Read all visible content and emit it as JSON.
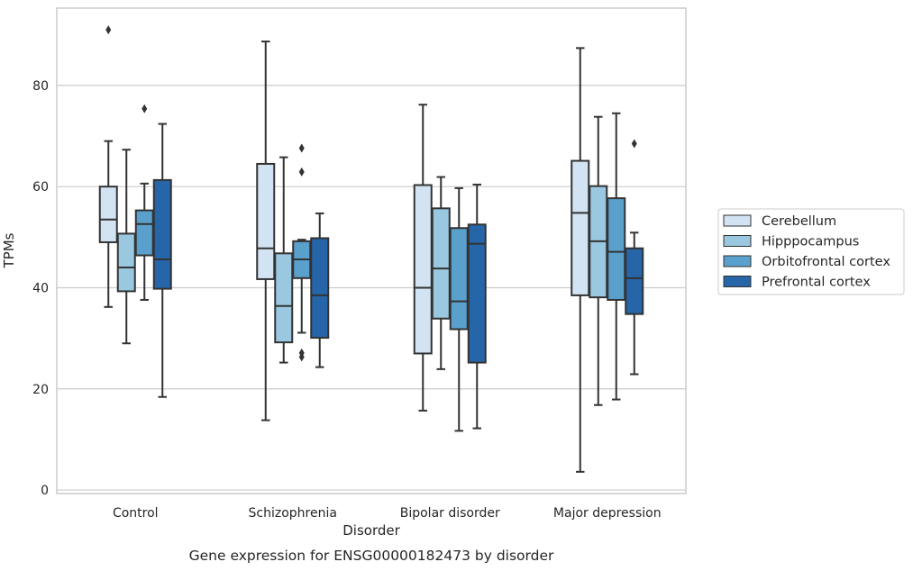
{
  "chart_data": {
    "type": "box",
    "caption": "Gene expression for ENSG00000182473 by disorder",
    "xlabel": "Disorder",
    "ylabel": "TPMs",
    "ylim": [
      -0.7,
      95.3
    ],
    "yticks": [
      0,
      20,
      40,
      60,
      80
    ],
    "grid": "horizontal",
    "legend_position": "right",
    "categories": [
      "Control",
      "Schizophrenia",
      "Bipolar disorder",
      "Major depression"
    ],
    "series": [
      {
        "name": "Cerebellum",
        "color": "#d2e3f3",
        "boxes": [
          {
            "whislo": 36.2,
            "q1": 49.0,
            "med": 53.5,
            "q3": 60.0,
            "whishi": 69.0,
            "fliers": [
              91.0
            ]
          },
          {
            "whislo": 13.8,
            "q1": 41.7,
            "med": 47.8,
            "q3": 64.5,
            "whishi": 88.7,
            "fliers": []
          },
          {
            "whislo": 15.7,
            "q1": 27.0,
            "med": 40.0,
            "q3": 60.3,
            "whishi": 76.2,
            "fliers": []
          },
          {
            "whislo": 3.6,
            "q1": 38.5,
            "med": 54.8,
            "q3": 65.1,
            "whishi": 87.4,
            "fliers": []
          }
        ]
      },
      {
        "name": "Hipppocampus",
        "color": "#9ac8e0",
        "boxes": [
          {
            "whislo": 29.0,
            "q1": 39.3,
            "med": 44.0,
            "q3": 50.7,
            "whishi": 67.3,
            "fliers": []
          },
          {
            "whislo": 25.2,
            "q1": 29.2,
            "med": 36.4,
            "q3": 46.8,
            "whishi": 65.8,
            "fliers": []
          },
          {
            "whislo": 23.9,
            "q1": 33.9,
            "med": 43.8,
            "q3": 55.7,
            "whishi": 61.9,
            "fliers": []
          },
          {
            "whislo": 16.8,
            "q1": 38.1,
            "med": 49.2,
            "q3": 60.1,
            "whishi": 73.8,
            "fliers": []
          }
        ]
      },
      {
        "name": "Orbitofrontal cortex",
        "color": "#5aa0cd",
        "boxes": [
          {
            "whislo": 37.6,
            "q1": 46.4,
            "med": 52.6,
            "q3": 55.3,
            "whishi": 60.6,
            "fliers": [
              75.4
            ]
          },
          {
            "whislo": 31.1,
            "q1": 41.9,
            "med": 45.6,
            "q3": 49.2,
            "whishi": 49.5,
            "fliers": [
              67.6,
              62.9,
              27.1,
              26.3
            ]
          },
          {
            "whislo": 11.7,
            "q1": 31.8,
            "med": 37.3,
            "q3": 51.8,
            "whishi": 59.7,
            "fliers": []
          },
          {
            "whislo": 17.9,
            "q1": 37.6,
            "med": 47.1,
            "q3": 57.7,
            "whishi": 74.5,
            "fliers": []
          }
        ]
      },
      {
        "name": "Prefrontal cortex",
        "color": "#2565a8",
        "boxes": [
          {
            "whislo": 18.4,
            "q1": 39.8,
            "med": 45.6,
            "q3": 61.3,
            "whishi": 72.4,
            "fliers": []
          },
          {
            "whislo": 24.3,
            "q1": 30.1,
            "med": 38.5,
            "q3": 49.8,
            "whishi": 54.7,
            "fliers": []
          },
          {
            "whislo": 12.2,
            "q1": 25.2,
            "med": 48.7,
            "q3": 52.5,
            "whishi": 60.4,
            "fliers": []
          },
          {
            "whislo": 22.9,
            "q1": 34.8,
            "med": 41.9,
            "q3": 47.8,
            "whishi": 50.9,
            "fliers": [
              68.5
            ]
          }
        ]
      }
    ]
  }
}
